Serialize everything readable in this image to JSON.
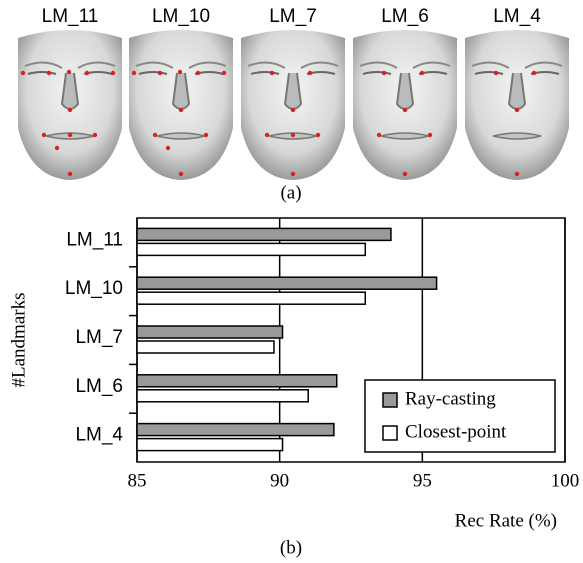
{
  "faces": {
    "labels": [
      "LM_11",
      "LM_10",
      "LM_7",
      "LM_6",
      "LM_4"
    ],
    "caption": "(a)"
  },
  "chart_data": {
    "type": "barh",
    "categories": [
      "LM_11",
      "LM_10",
      "LM_7",
      "LM_6",
      "LM_4"
    ],
    "series": [
      {
        "name": "Ray-casting",
        "color": "#999999",
        "values": [
          93.9,
          95.5,
          90.1,
          92.0,
          91.9
        ]
      },
      {
        "name": "Closest-point",
        "color": "#ffffff",
        "values": [
          93.0,
          93.0,
          89.8,
          91.0,
          90.1
        ]
      }
    ],
    "xlim": [
      85,
      100
    ],
    "xticks": [
      85,
      90,
      95,
      100
    ],
    "grid": true,
    "legend": "lower-right",
    "xlabel": "Rec Rate (%)",
    "ylabel": "#Landmarks"
  },
  "caption": "(b)"
}
